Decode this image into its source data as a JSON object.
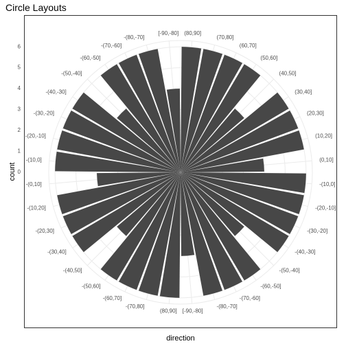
{
  "chart_data": {
    "type": "polar-bar",
    "title": "Circle Layouts",
    "x_label": "direction",
    "y_label": "count",
    "categories": [
      "(80,90]",
      "(70,80]",
      "(60,70]",
      "(50,60]",
      "(40,50]",
      "(30,40]",
      "(20,30]",
      "(10,20]",
      "(0,10]",
      "-(10,0]",
      "-(20,-10]",
      "-(30,-20]",
      "-(40,-30]",
      "-(50,-40]",
      "-(60,-50]",
      "-(70,-60]",
      "-(80,-70]",
      "[-90,-80]",
      "(80,90]",
      "-(70,80]",
      "-(60,70]",
      "-(50,60]",
      "-(40,50]",
      "-(30,40]",
      "-(20,30]",
      "-(10,20]",
      "-(0,10]",
      "-(10,0]",
      "-(20,-10]",
      "-(30,-20]",
      "-(40,-30]",
      "-(50,-40]",
      "-(60,-50]",
      "-(70,-60]",
      "-(80,-70]",
      "[-90,-80]"
    ],
    "values": [
      6,
      6,
      6,
      6,
      4,
      6,
      6,
      6,
      4,
      6,
      6,
      6,
      6,
      4,
      6,
      6,
      6,
      4,
      6,
      6,
      6,
      6,
      4,
      6,
      6,
      6,
      4,
      6,
      6,
      6,
      6,
      4,
      6,
      6,
      6,
      4
    ],
    "color": "#474747",
    "ylim": [
      0,
      6.3
    ],
    "yticks": [
      0,
      1,
      2,
      3,
      4,
      5,
      6
    ],
    "grid": true
  }
}
